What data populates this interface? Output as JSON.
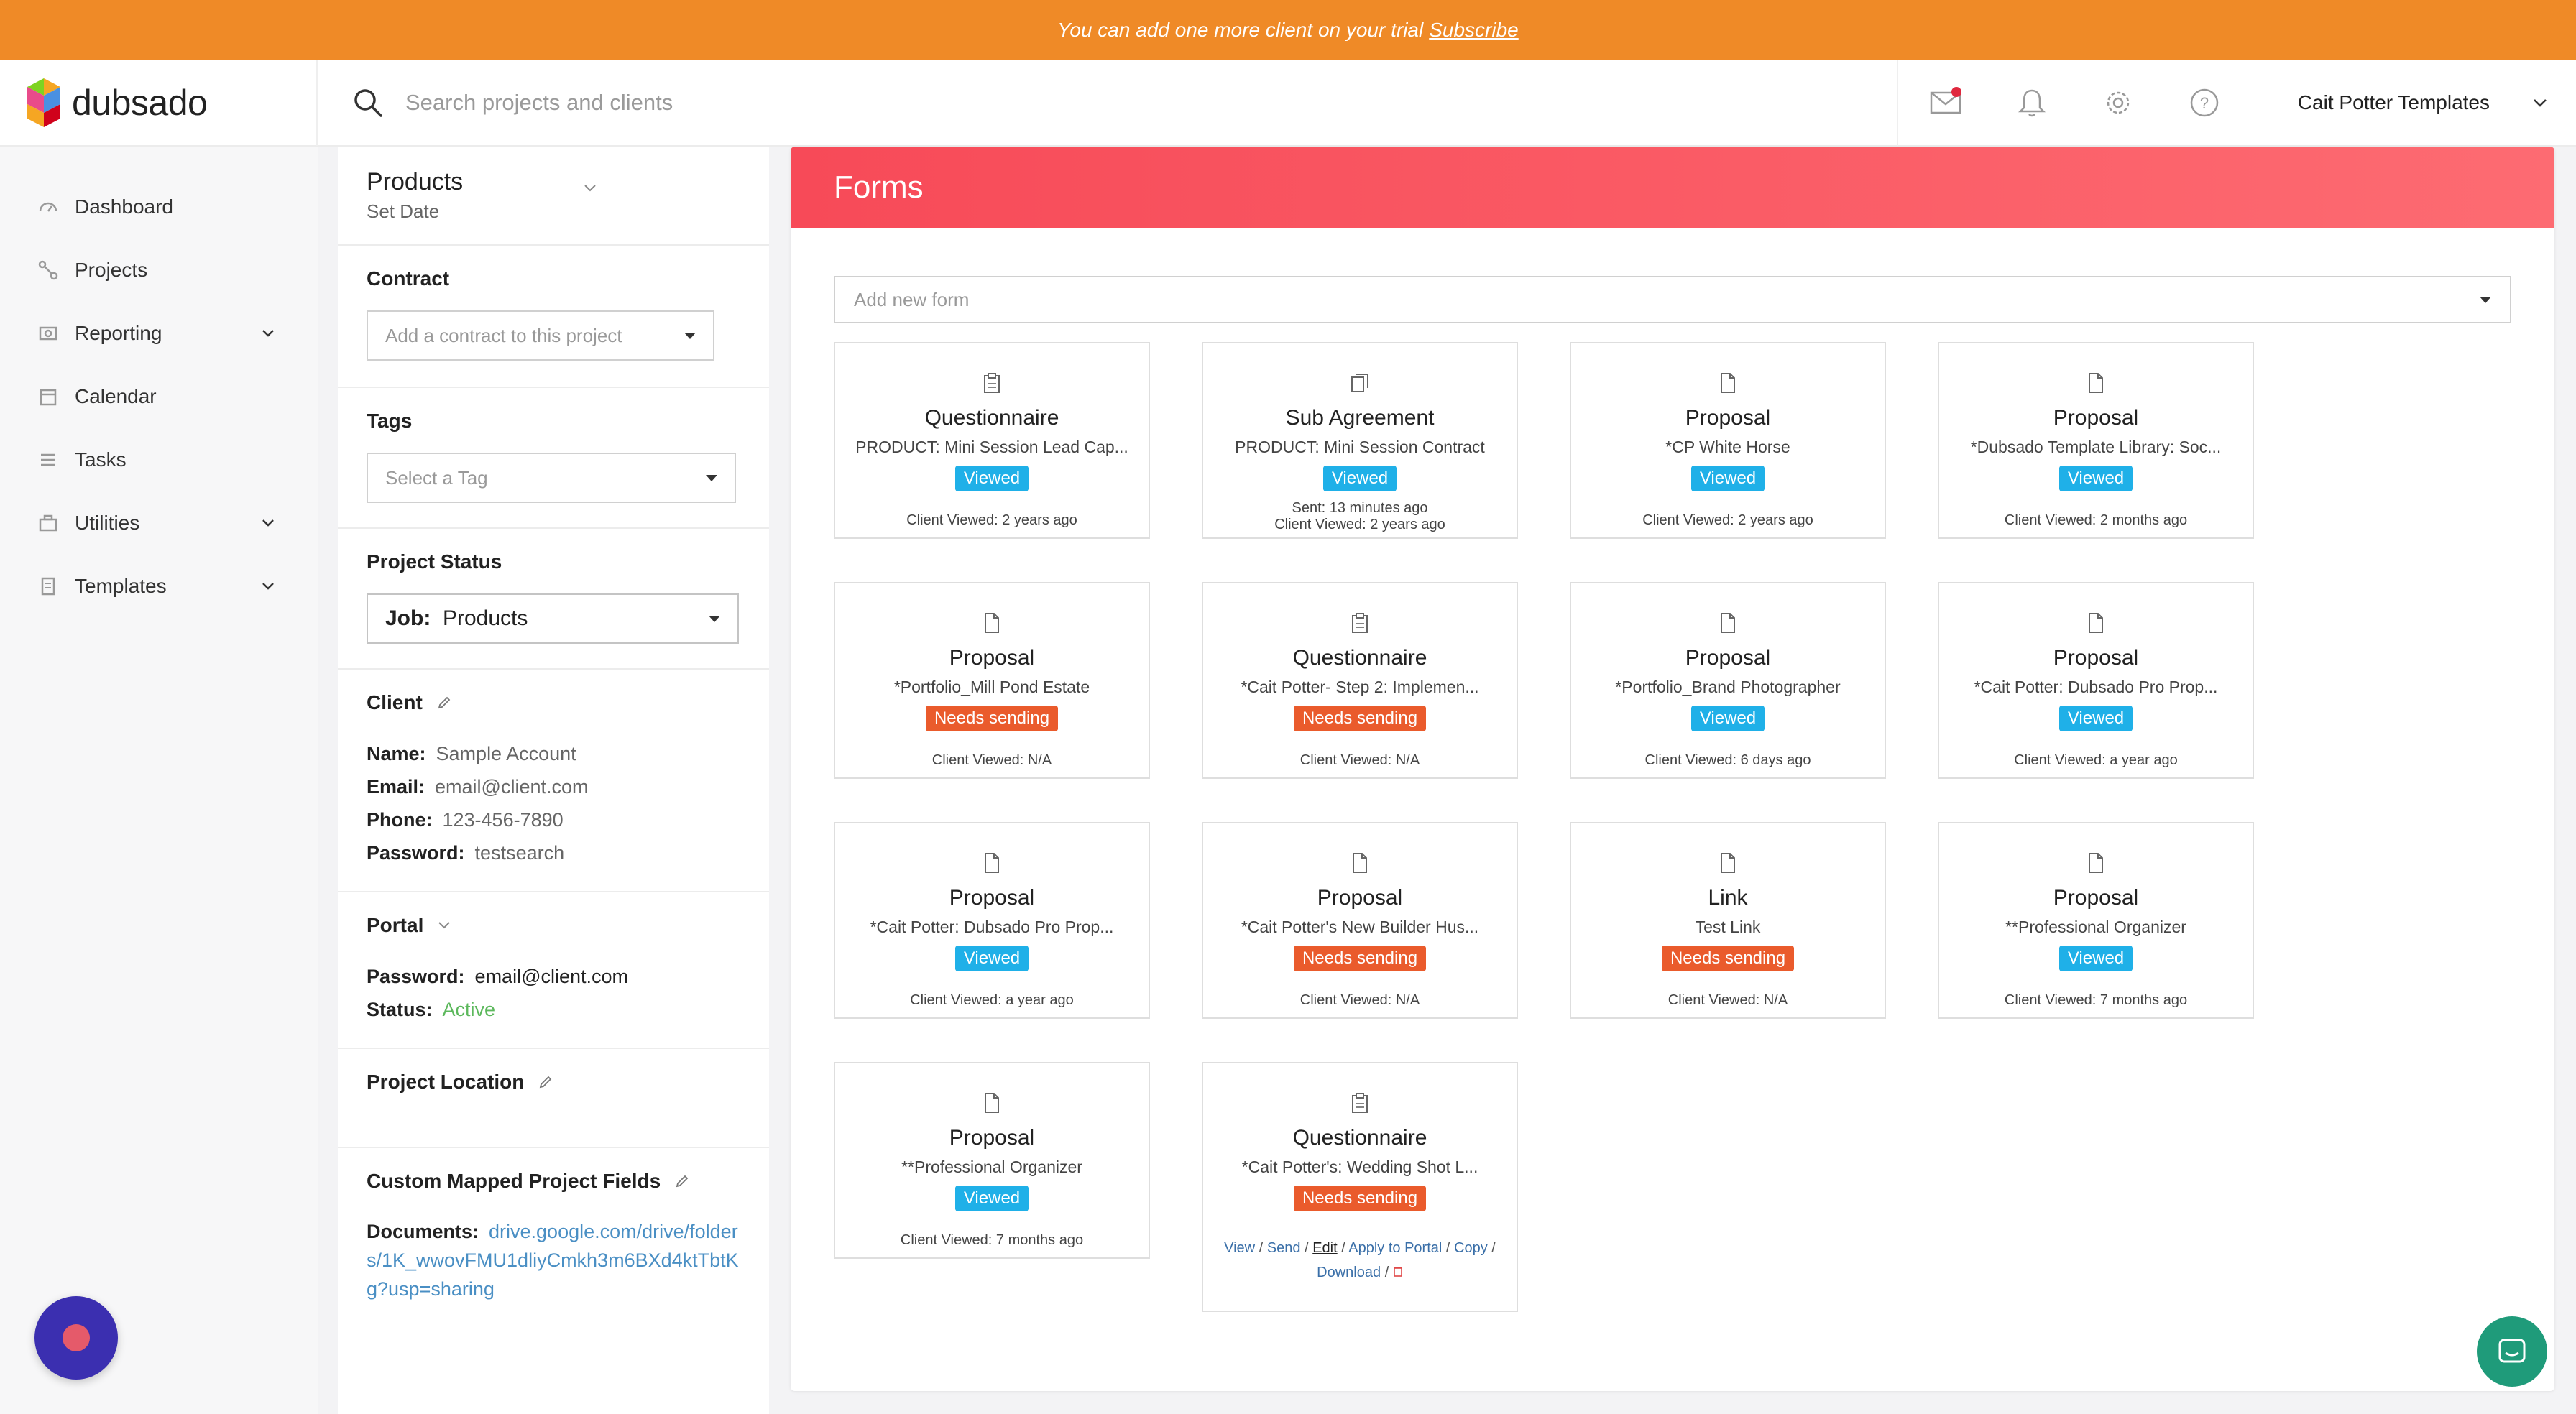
{
  "banner": {
    "text": "You can add one more client on your trial",
    "link": "Subscribe"
  },
  "header": {
    "logo_text": "dubsado",
    "search_placeholder": "Search projects and clients",
    "account_name": "Cait Potter Templates"
  },
  "nav": {
    "items": [
      {
        "label": "Dashboard",
        "icon": "dashboard-icon",
        "expandable": false
      },
      {
        "label": "Projects",
        "icon": "projects-icon",
        "expandable": false
      },
      {
        "label": "Reporting",
        "icon": "reporting-icon",
        "expandable": true
      },
      {
        "label": "Calendar",
        "icon": "calendar-icon",
        "expandable": false
      },
      {
        "label": "Tasks",
        "icon": "tasks-icon",
        "expandable": false
      },
      {
        "label": "Utilities",
        "icon": "utilities-icon",
        "expandable": true
      },
      {
        "label": "Templates",
        "icon": "templates-icon",
        "expandable": true
      }
    ]
  },
  "project": {
    "title": "Products",
    "subtitle": "Set Date",
    "contract": {
      "title": "Contract",
      "placeholder": "Add a contract to this project"
    },
    "tags": {
      "title": "Tags",
      "placeholder": "Select a Tag"
    },
    "status": {
      "title": "Project Status",
      "prefix": "Job:",
      "value": "Products"
    },
    "client": {
      "title": "Client",
      "name_label": "Name:",
      "name": "Sample Account",
      "email_label": "Email:",
      "email": "email@client.com",
      "phone_label": "Phone:",
      "phone": "123-456-7890",
      "password_label": "Password:",
      "password": "testsearch"
    },
    "portal": {
      "title": "Portal",
      "password_label": "Password:",
      "password": "email@client.com",
      "status_label": "Status:",
      "status": "Active"
    },
    "location": {
      "title": "Project Location"
    },
    "custom_fields": {
      "title": "Custom Mapped Project Fields",
      "documents_label": "Documents:",
      "documents": "drive.google.com/drive/folders/1K_wwovFMU1dliyCmkh3m6BXd4ktTbtKg?usp=sharing"
    }
  },
  "forms": {
    "title": "Forms",
    "add_placeholder": "Add new form",
    "cards": [
      {
        "type": "Questionnaire",
        "name": "PRODUCT: Mini Session Lead Cap...",
        "status": "Viewed",
        "viewed": "Client Viewed: 2 years ago"
      },
      {
        "type": "Sub Agreement",
        "name": "PRODUCT: Mini Session Contract",
        "status": "Viewed",
        "sent": "Sent: 13 minutes ago",
        "viewed": "Client Viewed: 2 years ago"
      },
      {
        "type": "Proposal",
        "name": "*CP White Horse",
        "status": "Viewed",
        "viewed": "Client Viewed: 2 years ago"
      },
      {
        "type": "Proposal",
        "name": "*Dubsado Template Library: Soc...",
        "status": "Viewed",
        "viewed": "Client Viewed: 2 months ago"
      },
      {
        "type": "Proposal",
        "name": "*Portfolio_Mill Pond Estate",
        "status": "Needs sending",
        "viewed": "Client Viewed: N/A"
      },
      {
        "type": "Questionnaire",
        "name": "*Cait Potter- Step 2: Implemen...",
        "status": "Needs sending",
        "viewed": "Client Viewed: N/A"
      },
      {
        "type": "Proposal",
        "name": "*Portfolio_Brand Photographer",
        "status": "Viewed",
        "viewed": "Client Viewed: 6 days ago"
      },
      {
        "type": "Proposal",
        "name": "*Cait Potter: Dubsado Pro Prop...",
        "status": "Viewed",
        "viewed": "Client Viewed: a year ago"
      },
      {
        "type": "Proposal",
        "name": "*Cait Potter: Dubsado Pro Prop...",
        "status": "Viewed",
        "viewed": "Client Viewed: a year ago"
      },
      {
        "type": "Proposal",
        "name": "*Cait Potter's New Builder Hus...",
        "status": "Needs sending",
        "viewed": "Client Viewed: N/A"
      },
      {
        "type": "Link",
        "name": "Test Link",
        "status": "Needs sending",
        "viewed": "Client Viewed: N/A"
      },
      {
        "type": "Proposal",
        "name": "**Professional Organizer",
        "status": "Viewed",
        "viewed": "Client Viewed: 7 months ago"
      },
      {
        "type": "Proposal",
        "name": "**Professional Organizer",
        "status": "Viewed",
        "viewed": "Client Viewed: 7 months ago"
      },
      {
        "type": "Questionnaire",
        "name": "*Cait Potter's: Wedding Shot L...",
        "status": "Needs sending",
        "actions": [
          "View",
          "Send",
          "Edit",
          "Apply to Portal",
          "Copy",
          "Download"
        ]
      }
    ]
  },
  "colors": {
    "banner": "#ef8a27",
    "forms_header": "#f74a58",
    "viewed": "#1fb0e8",
    "needs_sending": "#ea5b2c",
    "active": "#5cb85c"
  }
}
